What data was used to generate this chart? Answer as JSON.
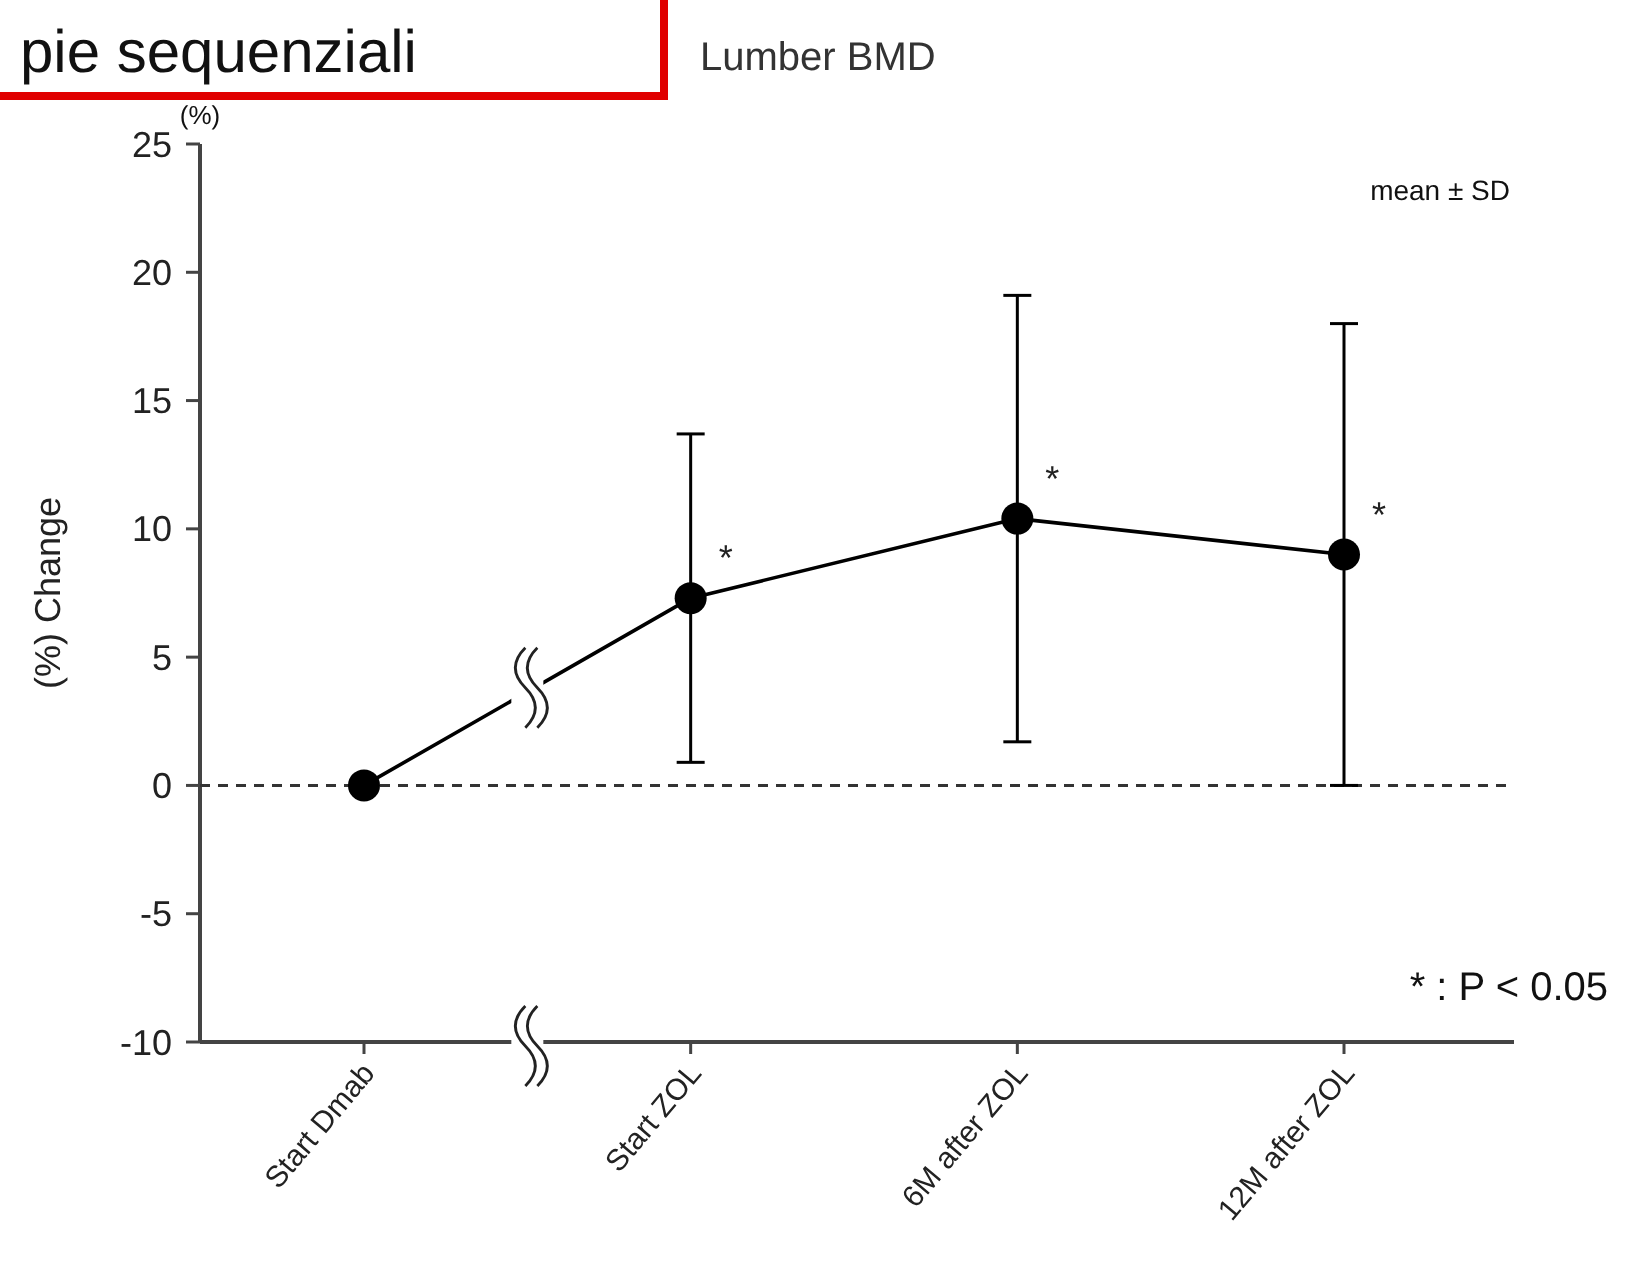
{
  "chart_data": {
    "type": "line",
    "title": "Lumber BMD",
    "ylabel": "(%) Change",
    "categories": [
      "Start Dmab",
      "Start ZOL",
      "6M after ZOL",
      "12M after ZOL"
    ],
    "series": [
      {
        "color": "#000000",
        "values": [
          0,
          7.3,
          10.4,
          9.0
        ],
        "errors": [
          null,
          6.4,
          8.7,
          9.0
        ]
      }
    ],
    "ylim": [
      -10,
      25
    ],
    "yticks": [
      -10,
      -5,
      0,
      5,
      10,
      15,
      20,
      25
    ],
    "ref_lines": [
      {
        "axis": "y",
        "value": 0,
        "line_style": "dashed",
        "color": "#333333"
      }
    ],
    "annotations": [
      "pie sequenziali",
      "(%)",
      "mean ± SD",
      "* : P < 0.05",
      {
        "text": "*",
        "x": "Start ZOL",
        "y": 7.3
      },
      {
        "text": "*",
        "x": "6M after ZOL",
        "y": 10.4
      },
      {
        "text": "*",
        "x": "12M after ZOL",
        "y": 9.0
      }
    ],
    "marker": "circle",
    "line_style": "solid",
    "grid": false
  }
}
